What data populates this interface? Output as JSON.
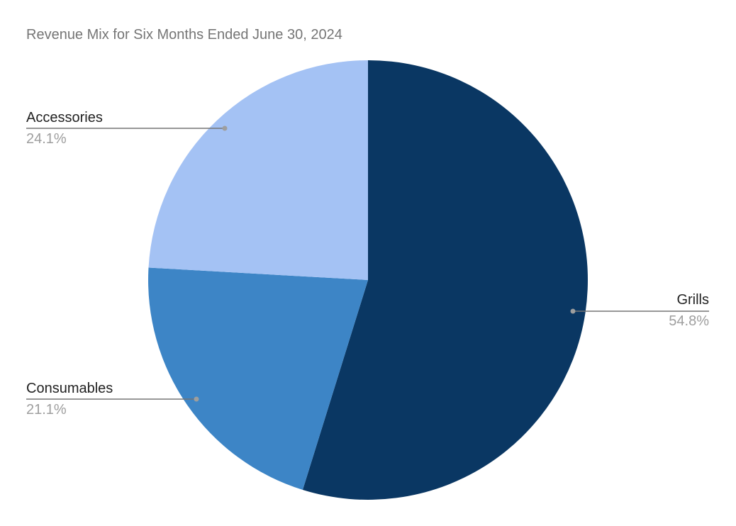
{
  "chart_data": {
    "type": "pie",
    "title": "Revenue Mix for Six Months Ended June 30, 2024",
    "start_angle": "12 o'clock, clockwise",
    "legend": "none (labels with leader lines)",
    "slices": [
      {
        "label": "Grills",
        "value": 54.8,
        "value_label": "54.8%",
        "color": "#0a3763"
      },
      {
        "label": "Consumables",
        "value": 21.1,
        "value_label": "21.1%",
        "color": "#3d85c6"
      },
      {
        "label": "Accessories",
        "value": 24.1,
        "value_label": "24.1%",
        "color": "#a4c2f4"
      }
    ]
  }
}
